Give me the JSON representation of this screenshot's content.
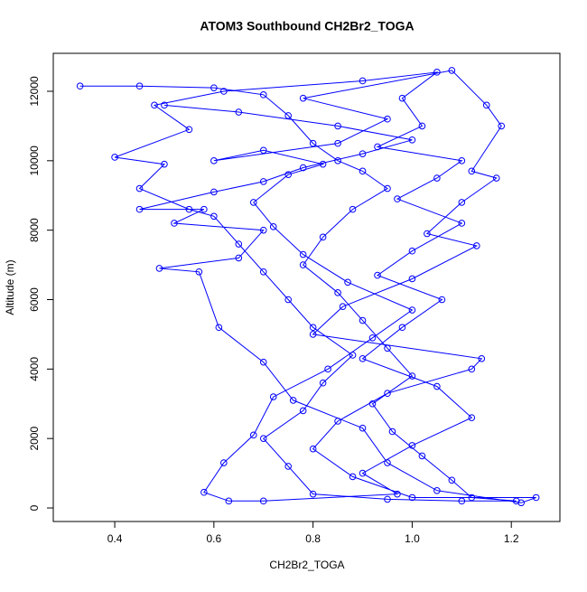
{
  "chart_data": {
    "type": "line",
    "markers": true,
    "title": "ATOM3 Southbound CH2Br2_TOGA",
    "x_label": "CH2Br2_TOGA",
    "y_label": "Altitude (m)",
    "color": "#0000ff",
    "xlim": [
      0.276,
      1.298
    ],
    "ylim": [
      -390,
      13093
    ],
    "xticks": [
      0.4,
      0.6,
      0.8,
      {
        "value": 1,
        "label": "1.0"
      },
      1.2
    ],
    "yticks": [
      0,
      2000,
      4000,
      6000,
      8000,
      10000,
      12000
    ],
    "x": [
      0.33,
      0.45,
      0.6,
      0.7,
      0.75,
      0.8,
      0.85,
      0.9,
      0.95,
      0.88,
      0.82,
      0.78,
      0.85,
      0.9,
      0.95,
      1.0,
      0.92,
      0.96,
      1.02,
      1.08,
      1.12,
      1.21,
      1.1,
      0.95,
      0.8,
      0.75,
      0.7,
      0.78,
      0.82,
      0.88,
      0.8,
      0.75,
      0.7,
      0.65,
      0.6,
      0.55,
      0.45,
      0.5,
      0.4,
      0.55,
      0.48,
      0.62,
      0.9,
      1.05,
      0.98,
      1.02,
      0.93,
      1.1,
      1.05,
      0.97,
      1.1,
      1.0,
      0.93,
      1.06,
      0.98,
      0.9,
      1.05,
      1.12,
      1.0,
      0.9,
      0.97,
      0.7,
      0.63,
      0.58,
      0.62,
      0.68,
      0.72,
      0.83,
      0.92,
      1.0,
      0.87,
      0.78,
      0.72,
      0.68,
      0.75,
      0.82,
      0.7,
      0.6,
      0.85,
      0.95,
      0.78,
      1.08,
      1.15,
      1.18,
      1.12,
      1.17,
      1.1,
      1.03,
      1.13,
      1.0,
      0.86,
      0.8,
      1.14,
      1.12,
      0.95,
      0.85,
      0.8,
      0.88,
      1.0,
      1.25,
      1.22,
      1.05,
      0.95,
      0.9,
      0.76,
      0.7,
      0.61,
      0.57,
      0.49,
      0.65,
      0.7,
      0.52,
      0.58,
      0.45,
      0.6,
      0.7,
      0.78,
      0.9,
      1.0,
      0.85,
      0.65,
      0.5
    ],
    "y": [
      12150,
      12150,
      12100,
      11900,
      11300,
      10500,
      10000,
      9700,
      9200,
      8600,
      7800,
      7000,
      6200,
      5400,
      4600,
      3800,
      3000,
      2200,
      1500,
      800,
      300,
      200,
      200,
      250,
      400,
      1200,
      2000,
      2800,
      3600,
      4400,
      5200,
      6000,
      6800,
      7600,
      8400,
      8600,
      9200,
      9900,
      10100,
      10900,
      11600,
      12000,
      12300,
      12550,
      11800,
      11000,
      10400,
      10000,
      9500,
      8900,
      8200,
      7400,
      6700,
      6000,
      5200,
      4300,
      3500,
      2600,
      1800,
      1000,
      400,
      200,
      200,
      450,
      1300,
      2100,
      3200,
      4000,
      4900,
      5700,
      6500,
      7300,
      8100,
      8800,
      9600,
      9900,
      10300,
      10000,
      10500,
      11200,
      11800,
      12600,
      11600,
      11000,
      9700,
      9500,
      8800,
      7900,
      7550,
      6600,
      5800,
      5000,
      4300,
      4000,
      3300,
      2500,
      1700,
      900,
      300,
      300,
      150,
      500,
      1300,
      2300,
      3100,
      4200,
      5200,
      6800,
      6900,
      7200,
      8000,
      8200,
      8600,
      8600,
      9100,
      9400,
      9800,
      10200,
      10600,
      11000,
      11400,
      11600
    ]
  }
}
